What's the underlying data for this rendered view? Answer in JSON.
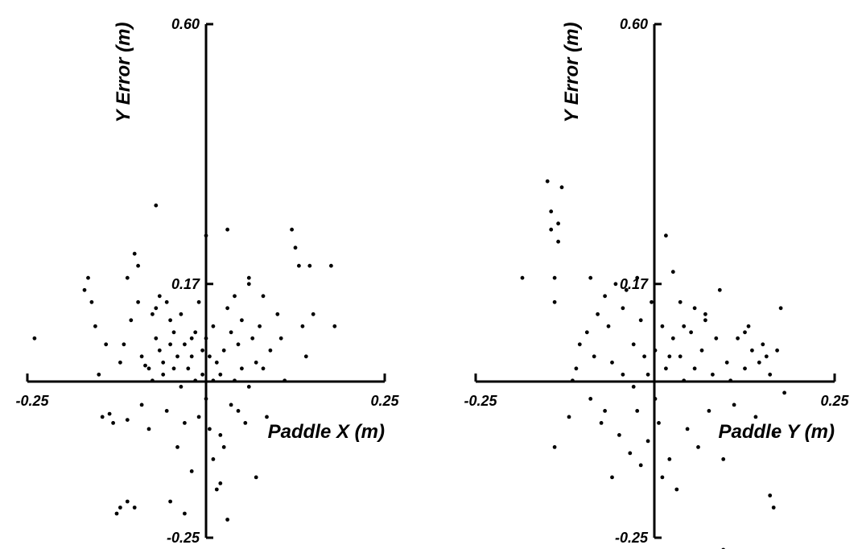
{
  "chart_data": [
    {
      "type": "scatter",
      "xlabel": "Paddle X (m)",
      "ylabel": "Y Error (m)",
      "xlim": [
        -0.25,
        0.25
      ],
      "ylim": [
        -0.25,
        0.6
      ],
      "xticks": [
        "-0.25",
        "0.25"
      ],
      "yticks": [
        "0.60",
        "0.17",
        "-0.25"
      ],
      "color": "#000000",
      "points": [
        [
          -0.24,
          0.08
        ],
        [
          -0.17,
          0.16
        ],
        [
          -0.165,
          0.18
        ],
        [
          -0.16,
          0.14
        ],
        [
          -0.155,
          0.1
        ],
        [
          -0.15,
          0.02
        ],
        [
          -0.145,
          -0.05
        ],
        [
          -0.14,
          0.07
        ],
        [
          -0.135,
          -0.045
        ],
        [
          -0.13,
          -0.06
        ],
        [
          -0.125,
          -0.21
        ],
        [
          -0.12,
          -0.2
        ],
        [
          -0.12,
          0.04
        ],
        [
          -0.115,
          0.07
        ],
        [
          -0.11,
          0.18
        ],
        [
          -0.11,
          -0.055
        ],
        [
          -0.105,
          0.11
        ],
        [
          -0.11,
          -0.19
        ],
        [
          -0.1,
          -0.2
        ],
        [
          -0.1,
          0.22
        ],
        [
          -0.095,
          0.14
        ],
        [
          -0.095,
          0.2
        ],
        [
          -0.09,
          0.05
        ],
        [
          -0.09,
          -0.03
        ],
        [
          -0.085,
          0.035
        ],
        [
          -0.08,
          -0.07
        ],
        [
          -0.08,
          0.03
        ],
        [
          -0.075,
          0.12
        ],
        [
          -0.075,
          0.01
        ],
        [
          -0.07,
          0.13
        ],
        [
          -0.07,
          0.08
        ],
        [
          -0.065,
          0.15
        ],
        [
          -0.065,
          0.06
        ],
        [
          -0.06,
          0.04
        ],
        [
          -0.06,
          0.02
        ],
        [
          -0.055,
          -0.04
        ],
        [
          -0.055,
          0.14
        ],
        [
          -0.05,
          0.07
        ],
        [
          -0.05,
          0.11
        ],
        [
          -0.05,
          -0.19
        ],
        [
          -0.045,
          0.09
        ],
        [
          -0.045,
          0.03
        ],
        [
          -0.04,
          -0.1
        ],
        [
          -0.04,
          0.05
        ],
        [
          -0.035,
          0.12
        ],
        [
          -0.035,
          0.0
        ],
        [
          -0.03,
          0.07
        ],
        [
          -0.03,
          -0.06
        ],
        [
          -0.03,
          -0.21
        ],
        [
          -0.025,
          0.03
        ],
        [
          -0.02,
          0.05
        ],
        [
          -0.02,
          -0.14
        ],
        [
          -0.015,
          0.09
        ],
        [
          -0.015,
          0.01
        ],
        [
          -0.01,
          -0.05
        ],
        [
          -0.01,
          0.14
        ],
        [
          -0.005,
          0.06
        ],
        [
          -0.005,
          0.02
        ],
        [
          0.0,
          0.08
        ],
        [
          0.0,
          -0.02
        ],
        [
          0.005,
          0.05
        ],
        [
          0.005,
          -0.07
        ],
        [
          0.01,
          0.01
        ],
        [
          0.01,
          -0.12
        ],
        [
          0.01,
          0.1
        ],
        [
          0.015,
          0.04
        ],
        [
          0.015,
          -0.17
        ],
        [
          0.02,
          -0.08
        ],
        [
          0.02,
          0.02
        ],
        [
          0.02,
          -0.16
        ],
        [
          0.025,
          0.06
        ],
        [
          0.025,
          -0.1
        ],
        [
          0.03,
          0.13
        ],
        [
          0.03,
          -0.22
        ],
        [
          0.035,
          0.09
        ],
        [
          0.035,
          -0.03
        ],
        [
          0.04,
          0.01
        ],
        [
          0.04,
          0.15
        ],
        [
          0.045,
          0.07
        ],
        [
          0.045,
          -0.04
        ],
        [
          0.05,
          0.11
        ],
        [
          0.05,
          0.03
        ],
        [
          0.055,
          -0.06
        ],
        [
          0.06,
          0.17
        ],
        [
          0.06,
          0.0
        ],
        [
          0.065,
          0.08
        ],
        [
          0.07,
          -0.15
        ],
        [
          0.07,
          0.04
        ],
        [
          0.075,
          0.1
        ],
        [
          0.08,
          0.03
        ],
        [
          0.085,
          -0.05
        ],
        [
          0.09,
          0.06
        ],
        [
          0.1,
          0.12
        ],
        [
          0.105,
          0.08
        ],
        [
          0.11,
          0.01
        ],
        [
          0.12,
          0.26
        ],
        [
          0.125,
          0.23
        ],
        [
          0.13,
          0.2
        ],
        [
          0.14,
          0.05
        ],
        [
          0.15,
          0.12
        ],
        [
          0.03,
          0.26
        ],
        [
          -0.07,
          0.3
        ],
        [
          0.06,
          0.18
        ],
        [
          -0.02,
          0.08
        ],
        [
          0.0,
          0.25
        ],
        [
          0.135,
          0.1
        ],
        [
          0.08,
          0.15
        ],
        [
          0.145,
          0.2
        ],
        [
          0.175,
          0.2
        ],
        [
          0.18,
          0.1
        ]
      ]
    },
    {
      "type": "scatter",
      "xlabel": "Paddle Y (m)",
      "ylabel": "Y Error (m)",
      "xlim": [
        -0.25,
        0.25
      ],
      "ylim": [
        -0.25,
        0.6
      ],
      "xticks": [
        "-0.25",
        "0.25"
      ],
      "yticks": [
        "0.60",
        "0.17",
        "-0.25"
      ],
      "color": "#000000",
      "points": [
        [
          -0.185,
          0.18
        ],
        [
          -0.15,
          0.34
        ],
        [
          -0.145,
          0.29
        ],
        [
          -0.145,
          0.26
        ],
        [
          -0.14,
          0.18
        ],
        [
          -0.14,
          0.14
        ],
        [
          -0.14,
          -0.1
        ],
        [
          -0.135,
          0.27
        ],
        [
          -0.135,
          0.24
        ],
        [
          -0.12,
          -0.05
        ],
        [
          -0.115,
          0.01
        ],
        [
          -0.11,
          0.03
        ],
        [
          -0.105,
          0.07
        ],
        [
          -0.095,
          0.09
        ],
        [
          -0.09,
          0.18
        ],
        [
          -0.09,
          -0.02
        ],
        [
          -0.085,
          0.05
        ],
        [
          -0.08,
          0.12
        ],
        [
          -0.075,
          -0.06
        ],
        [
          -0.07,
          0.15
        ],
        [
          -0.07,
          -0.04
        ],
        [
          -0.065,
          0.1
        ],
        [
          -0.06,
          0.04
        ],
        [
          -0.055,
          0.17
        ],
        [
          -0.05,
          -0.08
        ],
        [
          -0.045,
          0.13
        ],
        [
          -0.045,
          0.02
        ],
        [
          -0.04,
          0.16
        ],
        [
          -0.035,
          -0.11
        ],
        [
          -0.03,
          0.07
        ],
        [
          -0.03,
          0.0
        ],
        [
          -0.025,
          0.18
        ],
        [
          -0.025,
          -0.04
        ],
        [
          -0.02,
          0.11
        ],
        [
          -0.02,
          -0.13
        ],
        [
          -0.015,
          0.05
        ],
        [
          -0.01,
          -0.09
        ],
        [
          -0.01,
          0.02
        ],
        [
          -0.005,
          0.14
        ],
        [
          0.0,
          0.06
        ],
        [
          0.0,
          -0.02
        ],
        [
          0.005,
          -0.06
        ],
        [
          0.01,
          0.1
        ],
        [
          0.01,
          -0.15
        ],
        [
          0.015,
          0.03
        ],
        [
          0.02,
          -0.12
        ],
        [
          0.025,
          0.19
        ],
        [
          0.025,
          0.08
        ],
        [
          0.03,
          -0.17
        ],
        [
          0.035,
          0.05
        ],
        [
          0.04,
          0.01
        ],
        [
          0.045,
          -0.07
        ],
        [
          0.05,
          0.09
        ],
        [
          0.055,
          0.03
        ],
        [
          0.06,
          -0.1
        ],
        [
          0.065,
          0.06
        ],
        [
          0.07,
          0.11
        ],
        [
          0.075,
          -0.04
        ],
        [
          0.08,
          0.02
        ],
        [
          0.085,
          0.08
        ],
        [
          0.09,
          0.16
        ],
        [
          0.095,
          -0.12
        ],
        [
          0.1,
          0.04
        ],
        [
          0.105,
          0.01
        ],
        [
          0.11,
          -0.03
        ],
        [
          0.115,
          0.08
        ],
        [
          0.125,
          0.03
        ],
        [
          0.13,
          0.1
        ],
        [
          0.135,
          0.06
        ],
        [
          0.14,
          -0.05
        ],
        [
          0.145,
          0.04
        ],
        [
          0.15,
          0.07
        ],
        [
          0.16,
          0.02
        ],
        [
          0.165,
          -0.08
        ],
        [
          0.17,
          0.06
        ],
        [
          0.175,
          0.13
        ],
        [
          0.18,
          -0.01
        ],
        [
          0.16,
          -0.18
        ],
        [
          0.165,
          -0.2
        ],
        [
          0.155,
          0.05
        ],
        [
          -0.13,
          0.33
        ],
        [
          0.015,
          0.25
        ],
        [
          0.055,
          0.13
        ],
        [
          0.095,
          -0.27
        ],
        [
          -0.06,
          -0.15
        ],
        [
          0.035,
          0.14
        ],
        [
          0.02,
          0.05
        ],
        [
          0.07,
          0.12
        ],
        [
          0.125,
          0.09
        ],
        [
          0.04,
          0.1
        ]
      ]
    }
  ]
}
